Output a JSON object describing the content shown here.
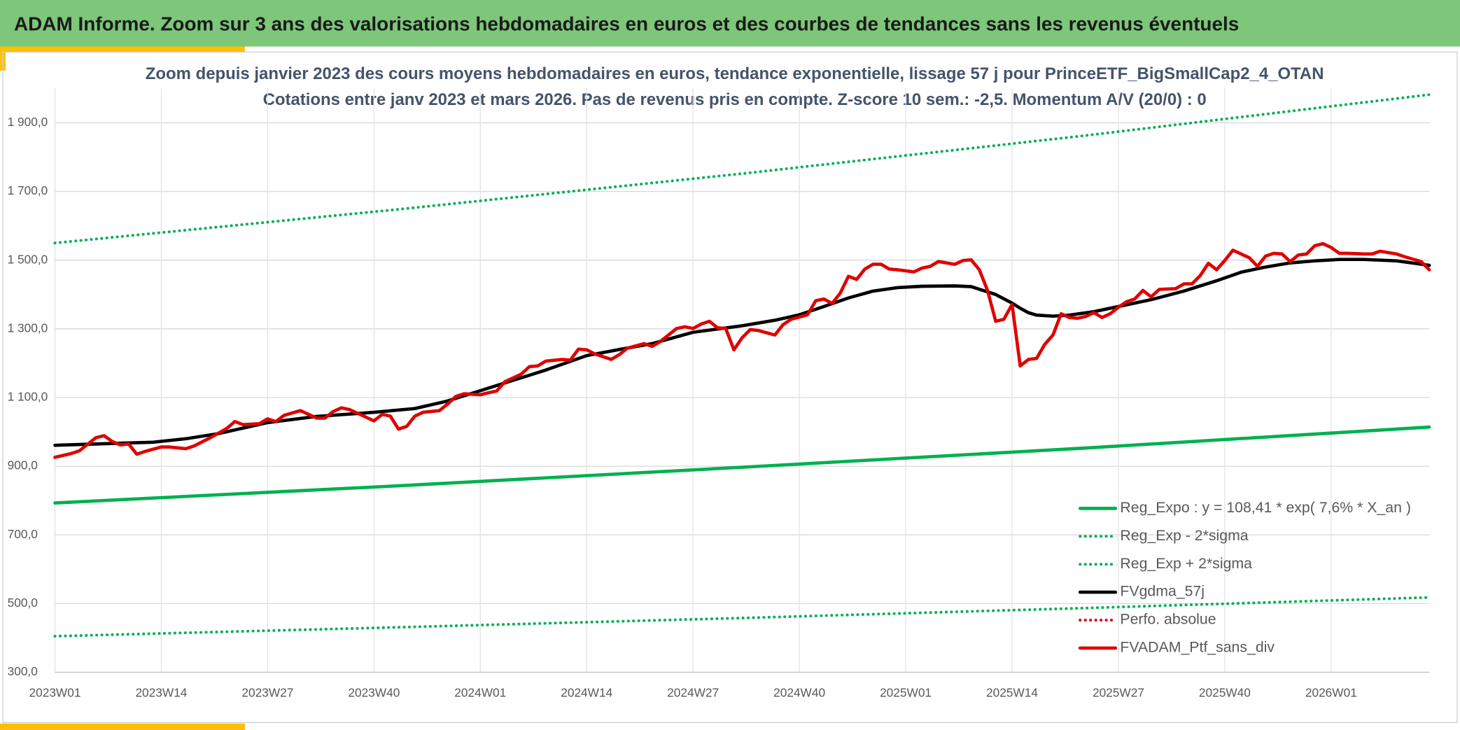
{
  "header": {
    "title": "ADAM Informe. Zoom sur 3 ans des valorisations hebdomadaires en euros et des courbes de tendances sans les revenus éventuels"
  },
  "chart_data": {
    "type": "line",
    "title": "Zoom depuis janvier 2023 des cours moyens hebdomadaires en euros, tendance exponentielle, lissage 57 j pour PrinceETF_BigSmallCap2_4_OTAN",
    "subtitle": "Cotations entre janv 2023 et mars 2026. Pas de revenus pris en compte. Z-score 10 sem.: -2,5. Momentum A/V (20/0) : 0",
    "xlim": [
      0,
      168
    ],
    "xticks": [
      {
        "value": 0,
        "label": "2023W01"
      },
      {
        "value": 13,
        "label": "2023W14"
      },
      {
        "value": 26,
        "label": "2023W27"
      },
      {
        "value": 39,
        "label": "2023W40"
      },
      {
        "value": 52,
        "label": "2024W01"
      },
      {
        "value": 65,
        "label": "2024W14"
      },
      {
        "value": 78,
        "label": "2024W27"
      },
      {
        "value": 91,
        "label": "2024W40"
      },
      {
        "value": 104,
        "label": "2025W01"
      },
      {
        "value": 117,
        "label": "2025W14"
      },
      {
        "value": 130,
        "label": "2025W27"
      },
      {
        "value": 143,
        "label": "2025W40"
      },
      {
        "value": 156,
        "label": "2026W01"
      }
    ],
    "ylim": [
      300,
      2000
    ],
    "yticks": [
      {
        "value": 300,
        "label": "300,0"
      },
      {
        "value": 500,
        "label": "500,0"
      },
      {
        "value": 700,
        "label": "700,0"
      },
      {
        "value": 900,
        "label": "900,0"
      },
      {
        "value": 1100,
        "label": "1 100,0"
      },
      {
        "value": 1300,
        "label": "1 300,0"
      },
      {
        "value": 1500,
        "label": "1 500,0"
      },
      {
        "value": 1700,
        "label": "1 700,0"
      },
      {
        "value": 1900,
        "label": "1 900,0"
      }
    ],
    "grid": true,
    "legend": "lower right",
    "series": [
      {
        "name": "Reg_Expo : y = 108,41 * exp( 7,6% *  X_an )",
        "color": "#00b050",
        "dotted": false,
        "x": [
          0,
          42,
          84,
          126,
          168
        ],
        "values": [
          793,
          843,
          897,
          953,
          1014
        ]
      },
      {
        "name": "Reg_Exp - 2*sigma",
        "color": "#00b050",
        "dotted": true,
        "x": [
          0,
          42,
          84,
          126,
          168
        ],
        "values": [
          405,
          431,
          458,
          487,
          518
        ]
      },
      {
        "name": "Reg_Exp + 2*sigma",
        "color": "#00b050",
        "dotted": true,
        "x": [
          0,
          42,
          84,
          126,
          168
        ],
        "values": [
          1550,
          1648,
          1752,
          1863,
          1982
        ]
      },
      {
        "name": "FVgdma_57j",
        "color": "#000000",
        "dotted": false,
        "x": [
          0,
          8,
          12,
          16,
          20,
          26,
          32,
          39,
          44,
          48,
          52,
          56,
          60,
          65,
          69,
          73,
          78,
          84,
          88,
          91,
          94,
          97,
          100,
          103,
          106,
          110,
          112,
          115,
          117,
          118,
          119,
          120,
          122,
          124,
          127,
          130,
          134,
          138,
          142,
          145,
          148,
          151,
          154,
          157,
          160,
          164,
          168
        ],
        "values": [
          961,
          967,
          970,
          980,
          995,
          1027,
          1045,
          1057,
          1068,
          1090,
          1120,
          1150,
          1180,
          1222,
          1240,
          1257,
          1290,
          1309,
          1325,
          1341,
          1365,
          1390,
          1410,
          1420,
          1424,
          1425,
          1423,
          1400,
          1375,
          1360,
          1347,
          1340,
          1337,
          1340,
          1350,
          1365,
          1385,
          1410,
          1440,
          1465,
          1480,
          1492,
          1498,
          1502,
          1502,
          1498,
          1485
        ]
      },
      {
        "name": "Perfo. absolue",
        "color": "#e00000",
        "dotted": true,
        "x": [
          0,
          2,
          3,
          5,
          6,
          7,
          8,
          9,
          10,
          11,
          13,
          14,
          16,
          17,
          19,
          21,
          22,
          23,
          25,
          26,
          27,
          28,
          30,
          31,
          32,
          33,
          34,
          35,
          36,
          38,
          39,
          40,
          41,
          42,
          43,
          44,
          45,
          47,
          48,
          49,
          50,
          52,
          53,
          54,
          55,
          57,
          58,
          59,
          60,
          62,
          63,
          64,
          65,
          66,
          68,
          69,
          70,
          72,
          73,
          74,
          76,
          77,
          78,
          79,
          80,
          81,
          82,
          83,
          84,
          85,
          86,
          88,
          89,
          90,
          92,
          93,
          94,
          95,
          96,
          97,
          98,
          99,
          100,
          101,
          102,
          103,
          105,
          106,
          107,
          108,
          110,
          111,
          112,
          113,
          114,
          115,
          116,
          117,
          118,
          119,
          120,
          121,
          122,
          123,
          124,
          125,
          126,
          127,
          128,
          129,
          130,
          131,
          132,
          133,
          134,
          135,
          137,
          138,
          139,
          140,
          141,
          142,
          143,
          144,
          145,
          146,
          147,
          148,
          149,
          150,
          151,
          152,
          153,
          154,
          155,
          156,
          157,
          158,
          160,
          161,
          162,
          164,
          165,
          167,
          168
        ],
        "values": [
          926,
          937,
          945,
          983,
          989,
          972,
          962,
          965,
          935,
          943,
          956,
          956,
          951,
          959,
          983,
          1010,
          1030,
          1021,
          1024,
          1038,
          1030,
          1048,
          1062,
          1051,
          1040,
          1040,
          1059,
          1070,
          1065,
          1043,
          1032,
          1051,
          1046,
          1008,
          1016,
          1046,
          1057,
          1062,
          1081,
          1103,
          1111,
          1108,
          1114,
          1119,
          1146,
          1168,
          1190,
          1192,
          1206,
          1211,
          1209,
          1241,
          1239,
          1227,
          1211,
          1225,
          1244,
          1257,
          1249,
          1263,
          1301,
          1306,
          1301,
          1314,
          1322,
          1303,
          1301,
          1239,
          1274,
          1298,
          1295,
          1282,
          1312,
          1328,
          1341,
          1382,
          1387,
          1374,
          1404,
          1453,
          1444,
          1474,
          1488,
          1488,
          1474,
          1472,
          1466,
          1477,
          1482,
          1496,
          1488,
          1499,
          1501,
          1472,
          1412,
          1322,
          1328,
          1371,
          1192,
          1211,
          1214,
          1255,
          1282,
          1344,
          1333,
          1331,
          1336,
          1347,
          1333,
          1344,
          1363,
          1379,
          1387,
          1412,
          1393,
          1415,
          1417,
          1431,
          1431,
          1455,
          1491,
          1472,
          1499,
          1529,
          1518,
          1507,
          1482,
          1512,
          1520,
          1518,
          1496,
          1515,
          1518,
          1542,
          1548,
          1537,
          1520,
          1520,
          1518,
          1518,
          1526,
          1518,
          1510,
          1496,
          1472
        ]
      },
      {
        "name": "FVADAM_Ptf_sans_div",
        "color": "#e00000",
        "dotted": false,
        "x": [
          0,
          2,
          3,
          5,
          6,
          7,
          8,
          9,
          10,
          11,
          13,
          14,
          16,
          17,
          19,
          21,
          22,
          23,
          25,
          26,
          27,
          28,
          30,
          31,
          32,
          33,
          34,
          35,
          36,
          38,
          39,
          40,
          41,
          42,
          43,
          44,
          45,
          47,
          48,
          49,
          50,
          52,
          53,
          54,
          55,
          57,
          58,
          59,
          60,
          62,
          63,
          64,
          65,
          66,
          68,
          69,
          70,
          72,
          73,
          74,
          76,
          77,
          78,
          79,
          80,
          81,
          82,
          83,
          84,
          85,
          86,
          88,
          89,
          90,
          92,
          93,
          94,
          95,
          96,
          97,
          98,
          99,
          100,
          101,
          102,
          103,
          105,
          106,
          107,
          108,
          110,
          111,
          112,
          113,
          114,
          115,
          116,
          117,
          118,
          119,
          120,
          121,
          122,
          123,
          124,
          125,
          126,
          127,
          128,
          129,
          130,
          131,
          132,
          133,
          134,
          135,
          137,
          138,
          139,
          140,
          141,
          142,
          143,
          144,
          145,
          146,
          147,
          148,
          149,
          150,
          151,
          152,
          153,
          154,
          155,
          156,
          157,
          158,
          160,
          161,
          162,
          164,
          165,
          167,
          168
        ],
        "values": [
          926,
          937,
          945,
          983,
          989,
          972,
          962,
          965,
          935,
          943,
          956,
          956,
          951,
          959,
          983,
          1010,
          1030,
          1021,
          1024,
          1038,
          1030,
          1048,
          1062,
          1051,
          1040,
          1040,
          1059,
          1070,
          1065,
          1043,
          1032,
          1051,
          1046,
          1008,
          1016,
          1046,
          1057,
          1062,
          1081,
          1103,
          1111,
          1108,
          1114,
          1119,
          1146,
          1168,
          1190,
          1192,
          1206,
          1211,
          1209,
          1241,
          1239,
          1227,
          1211,
          1225,
          1244,
          1257,
          1249,
          1263,
          1301,
          1306,
          1301,
          1314,
          1322,
          1303,
          1301,
          1239,
          1274,
          1298,
          1295,
          1282,
          1312,
          1328,
          1341,
          1382,
          1387,
          1374,
          1404,
          1453,
          1444,
          1474,
          1488,
          1488,
          1474,
          1472,
          1466,
          1477,
          1482,
          1496,
          1488,
          1499,
          1501,
          1472,
          1412,
          1322,
          1328,
          1371,
          1192,
          1211,
          1214,
          1255,
          1282,
          1344,
          1333,
          1331,
          1336,
          1347,
          1333,
          1344,
          1363,
          1379,
          1387,
          1412,
          1393,
          1415,
          1417,
          1431,
          1431,
          1455,
          1491,
          1472,
          1499,
          1529,
          1518,
          1507,
          1482,
          1512,
          1520,
          1518,
          1496,
          1515,
          1518,
          1542,
          1548,
          1537,
          1520,
          1520,
          1518,
          1518,
          1526,
          1518,
          1510,
          1496,
          1472
        ]
      }
    ]
  }
}
